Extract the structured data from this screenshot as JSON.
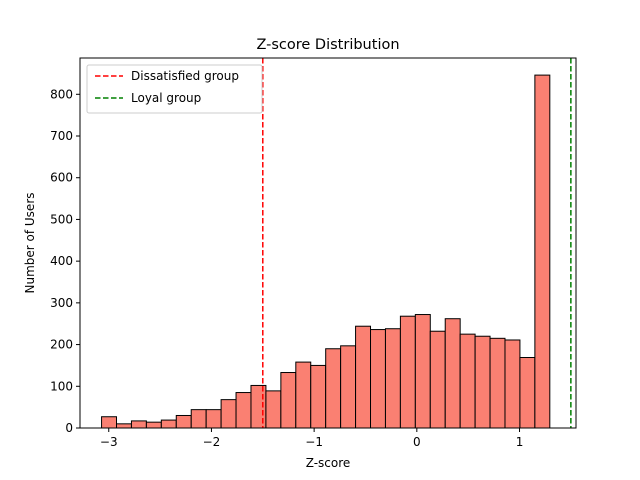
{
  "chart_data": {
    "type": "bar",
    "title": "Z-score Distribution",
    "xlabel": "Z-score",
    "ylabel": "Number of Users",
    "xlim": [
      -3.28,
      1.55
    ],
    "ylim": [
      0,
      887
    ],
    "xticks": [
      -3,
      -2,
      -1,
      0,
      1
    ],
    "xtick_labels": [
      "−3",
      "−2",
      "−1",
      "0",
      "1"
    ],
    "yticks": [
      0,
      100,
      200,
      300,
      400,
      500,
      600,
      700,
      800
    ],
    "bin_start": -3.07,
    "bin_width": 0.1455,
    "values": [
      27,
      10,
      17,
      14,
      19,
      30,
      44,
      44,
      68,
      85,
      102,
      89,
      133,
      158,
      150,
      190,
      197,
      244,
      236,
      238,
      268,
      272,
      232,
      262,
      225,
      220,
      215,
      211,
      169,
      846
    ],
    "bar_color": "#fa8072",
    "bar_edge_color": "#000000",
    "reference_lines": [
      {
        "name": "Dissatisfied group",
        "x": -1.5,
        "color": "#ff0000",
        "style": "dashed"
      },
      {
        "name": "Loyal group",
        "x": 1.5,
        "color": "#008000",
        "style": "dashed"
      }
    ],
    "legend_position": "top-left",
    "grid": false
  }
}
